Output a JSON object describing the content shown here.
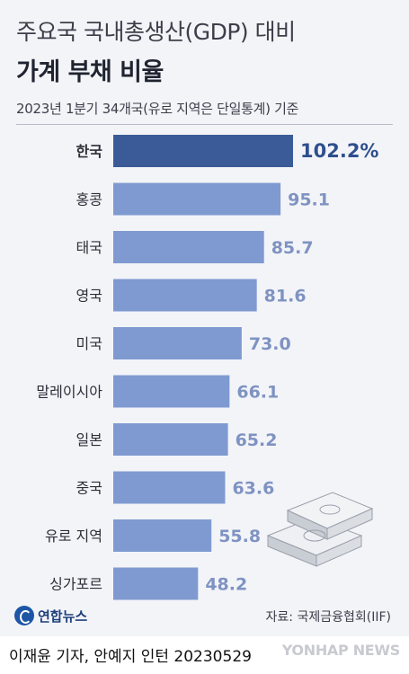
{
  "chart_data": {
    "type": "bar",
    "orientation": "horizontal",
    "title": "주요국 국내총생산(GDP) 대비",
    "title_bold": "가계 부채 비율",
    "subtitle": "2023년 1분기 34개국(유로 지역은 단일통계) 기준",
    "categories": [
      "한국",
      "홍콩",
      "태국",
      "영국",
      "미국",
      "말레이시아",
      "일본",
      "중국",
      "유로 지역",
      "싱가포르"
    ],
    "values": [
      102.2,
      95.1,
      85.7,
      81.6,
      73.0,
      66.1,
      65.2,
      63.6,
      55.8,
      48.2
    ],
    "value_labels": [
      "102.2%",
      "95.1",
      "85.7",
      "81.6",
      "73.0",
      "66.1",
      "65.2",
      "63.6",
      "55.8",
      "48.2"
    ],
    "highlight_index": 0,
    "colors": {
      "highlight": "#3a5b97",
      "bar": "#7f9ad1",
      "highlight_label": "#2f4f8d",
      "label": "#7f93c2"
    }
  },
  "source": "자료: 국제금융협회(IIF)",
  "logo_text": "연합뉴스",
  "credit": "이재윤 기자, 안예지 인턴  20230529",
  "watermark": "YONHAP NEWS",
  "decoration": "money-stack-icon"
}
